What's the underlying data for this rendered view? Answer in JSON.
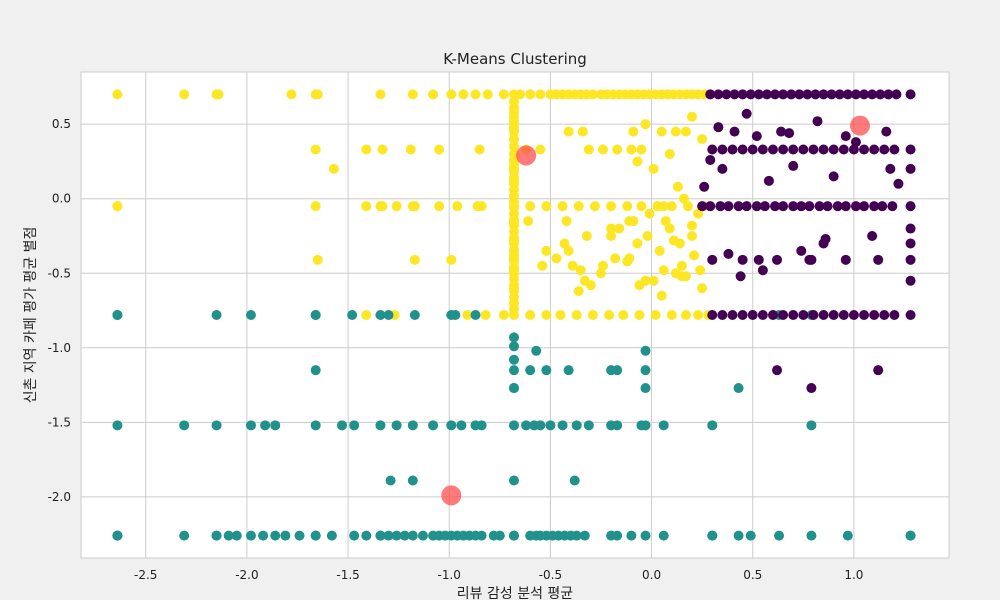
{
  "chart_data": {
    "type": "scatter",
    "title": "K-Means Clustering",
    "xlabel": "리뷰 감성 분석 평균",
    "ylabel": "신촌 지역 카페 평가 평균 별점",
    "xlim": [
      -2.82,
      1.47
    ],
    "ylim": [
      -2.41,
      0.85
    ],
    "xticks": [
      -2.5,
      -2.0,
      -1.5,
      -1.0,
      -0.5,
      0.0,
      0.5,
      1.0
    ],
    "xtick_labels": [
      "-2.5",
      "-2.0",
      "-1.5",
      "-1.0",
      "-0.5",
      "0.0",
      "0.5",
      "1.0"
    ],
    "yticks": [
      -2.0,
      -1.5,
      -1.0,
      -0.5,
      0.0,
      0.5
    ],
    "ytick_labels": [
      "-2.0",
      "-1.5",
      "-1.0",
      "-0.5",
      "0.0",
      "0.5"
    ],
    "grid": true,
    "colors": {
      "cluster_0": "#440154",
      "cluster_1": "#21918c",
      "cluster_2": "#fde725",
      "centroid": "#ff4d4d"
    },
    "series": [
      {
        "cluster": 2,
        "color": "#fde725",
        "x": [
          -2.64,
          -2.31,
          -2.15,
          -2.14,
          -1.78,
          -1.66,
          -1.65,
          -1.34,
          -1.18,
          -1.08,
          -0.99,
          -0.93,
          -0.87,
          -0.81,
          -0.73,
          -0.68,
          -0.65,
          -0.6,
          -0.55,
          -0.5,
          -0.47,
          -0.44,
          -0.41,
          -0.38,
          -0.35,
          -0.32,
          -0.29,
          -0.25,
          -0.22,
          -0.19,
          -0.16,
          -0.13,
          -0.1,
          -0.07,
          -0.04,
          -0.01,
          0.02,
          0.05,
          0.08,
          0.11,
          0.14,
          0.17,
          0.2,
          0.23,
          0.26,
          0.29,
          -2.64,
          -1.66,
          -1.41,
          -1.33,
          -1.19,
          -1.05,
          -0.85,
          -0.68,
          -0.68,
          -0.68,
          -0.68,
          -0.68,
          -0.68,
          -0.68,
          -0.68,
          -0.62,
          -0.55,
          -0.41,
          -0.34,
          -0.31,
          -0.24,
          -0.17,
          -0.1,
          -0.05,
          -0.03,
          0.05,
          0.12,
          0.17,
          0.2,
          0.25,
          -0.07,
          0.09,
          0.01,
          -0.09,
          -2.64,
          -1.66,
          -1.41,
          -1.34,
          -1.26,
          -1.17,
          -1.05,
          -0.96,
          -0.84,
          -0.68,
          -0.6,
          -0.52,
          -0.44,
          -0.36,
          -0.28,
          -0.2,
          -0.12,
          -0.05,
          0.03,
          0.1,
          0.18,
          0.25,
          0.29,
          -1.57,
          -1.33,
          -1.18,
          -0.86,
          -0.68,
          -0.61,
          -0.42,
          -0.52,
          -0.68,
          -0.68,
          -0.68,
          -0.68,
          -0.43,
          -0.32,
          -0.2,
          -0.11,
          -0.07,
          -0.02,
          0.04,
          0.09,
          0.14,
          0.2,
          -1.65,
          -1.17,
          -0.99,
          -0.68,
          -0.54,
          -0.47,
          -0.39,
          -0.33,
          -0.24,
          -0.18,
          -0.11,
          -0.03,
          0.06,
          0.12,
          0.15,
          -2.64,
          -1.66,
          -1.41,
          -1.27,
          -0.97,
          -0.91,
          -0.82,
          -0.73,
          -0.68,
          -0.6,
          -0.52,
          -0.45,
          -0.37,
          -0.29,
          -0.21,
          -0.14,
          -0.06,
          0.02,
          0.1,
          0.17,
          0.23,
          0.28,
          -0.68,
          -0.68,
          -0.68,
          -0.68,
          -0.68,
          -0.68,
          -0.68,
          -0.68,
          -0.68,
          -0.68,
          -0.68,
          -0.68,
          -0.68,
          -0.68,
          -0.68,
          -0.68,
          -0.68,
          -0.68,
          -0.68,
          -0.68,
          -0.68,
          -0.68,
          -0.68,
          -0.68,
          -0.68,
          -0.68,
          -0.68,
          -0.68,
          -0.68,
          -0.68,
          -0.68,
          -0.68,
          -0.68,
          -0.68,
          -0.68,
          -0.68,
          -0.68,
          -0.68,
          -0.41,
          -0.35,
          -0.06,
          0.05,
          0.17,
          0.25,
          -0.2,
          -0.09,
          0.11,
          0.06,
          0.2,
          0.23,
          0.26,
          -0.12,
          0.15,
          0.01,
          -0.01,
          0.03,
          0.07,
          -0.3,
          -0.36,
          0.13,
          0.16,
          -0.25,
          0.21,
          0.24,
          -0.16
        ],
        "y": [
          0.7,
          0.7,
          0.7,
          0.7,
          0.7,
          0.7,
          0.7,
          0.7,
          0.7,
          0.7,
          0.7,
          0.7,
          0.7,
          0.7,
          0.7,
          0.7,
          0.7,
          0.7,
          0.7,
          0.7,
          0.7,
          0.7,
          0.7,
          0.7,
          0.7,
          0.7,
          0.7,
          0.7,
          0.7,
          0.7,
          0.7,
          0.7,
          0.7,
          0.7,
          0.7,
          0.7,
          0.7,
          0.7,
          0.7,
          0.7,
          0.7,
          0.7,
          0.7,
          0.7,
          0.7,
          0.7,
          -0.05,
          0.33,
          0.33,
          0.33,
          0.33,
          0.33,
          0.33,
          0.4,
          0.45,
          0.5,
          0.55,
          0.61,
          0.3,
          0.25,
          0.2,
          0.33,
          0.33,
          0.45,
          0.45,
          0.33,
          0.33,
          0.33,
          0.33,
          0.33,
          0.5,
          0.45,
          0.45,
          0.45,
          0.55,
          0.4,
          0.25,
          0.3,
          0.2,
          0.45,
          -0.05,
          -0.05,
          -0.05,
          -0.05,
          -0.05,
          -0.05,
          -0.05,
          -0.05,
          -0.05,
          -0.05,
          -0.05,
          -0.05,
          -0.05,
          -0.05,
          -0.05,
          -0.05,
          -0.05,
          -0.05,
          -0.05,
          -0.05,
          -0.05,
          -0.05,
          -0.05,
          0.2,
          -0.05,
          -0.05,
          -0.05,
          -0.15,
          -0.15,
          -0.15,
          -0.35,
          -0.4,
          -0.5,
          -0.6,
          -0.7,
          -0.3,
          -0.25,
          -0.2,
          -0.15,
          -0.3,
          -0.25,
          -0.35,
          -0.2,
          -0.3,
          -0.25,
          -0.41,
          -0.41,
          -0.41,
          -0.35,
          -0.45,
          -0.4,
          -0.45,
          -0.55,
          -0.45,
          -0.4,
          -0.4,
          -0.55,
          -0.48,
          -0.5,
          -0.45,
          -0.78,
          -0.78,
          -0.78,
          -0.78,
          -0.78,
          -0.78,
          -0.78,
          -0.78,
          -0.78,
          -0.78,
          -0.78,
          -0.78,
          -0.78,
          -0.78,
          -0.78,
          -0.78,
          -0.78,
          -0.78,
          -0.78,
          -0.78,
          -0.78,
          -0.78,
          0.65,
          0.58,
          0.52,
          0.46,
          0.4,
          0.35,
          0.3,
          0.26,
          0.22,
          0.18,
          0.14,
          0.1,
          0.06,
          0.02,
          -0.02,
          -0.06,
          -0.1,
          -0.14,
          -0.18,
          -0.22,
          -0.26,
          -0.3,
          -0.34,
          -0.38,
          -0.42,
          -0.46,
          -0.5,
          -0.54,
          -0.58,
          -0.62,
          -0.66,
          -0.7,
          -0.74,
          0.12,
          -0.28,
          -0.48,
          -0.16,
          0.48,
          -0.35,
          -0.48,
          -0.58,
          -0.65,
          -0.52,
          -0.6,
          -0.25,
          -0.15,
          -0.28,
          -0.05,
          -0.18,
          -0.1,
          -0.05,
          -0.42,
          -0.52,
          -0.55,
          -0.1,
          -0.05,
          -0.15,
          -0.58,
          -0.62,
          0.08,
          0.0,
          -0.5,
          -0.38,
          -0.48,
          -0.2
        ]
      },
      {
        "cluster": 1,
        "color": "#21918c",
        "x": [
          -2.64,
          -2.64,
          -2.15,
          -1.98,
          -1.66,
          -1.66,
          -1.66,
          -1.48,
          -1.34,
          -1.3,
          -1.17,
          -0.99,
          -0.97,
          -0.87,
          -0.68,
          -0.68,
          -0.68,
          -0.68,
          -0.68,
          -0.68,
          -0.6,
          -0.57,
          -0.52,
          -0.41,
          -0.2,
          -0.17,
          -0.03,
          -0.03,
          -0.03,
          0.43,
          0.63,
          0.79,
          -2.64,
          -2.31,
          -2.15,
          -1.98,
          -1.91,
          -1.86,
          -1.66,
          -1.53,
          -1.47,
          -1.34,
          -1.26,
          -1.18,
          -1.08,
          -0.99,
          -0.94,
          -0.87,
          -0.84,
          -0.68,
          -0.62,
          -0.58,
          -0.55,
          -0.5,
          -0.44,
          -0.37,
          -0.31,
          -0.2,
          -0.17,
          -0.05,
          -0.03,
          0.06,
          0.3,
          0.79,
          -1.29,
          -1.18,
          -0.68,
          -0.38,
          -2.64,
          -2.64,
          -2.31,
          -2.15,
          -2.09,
          -2.05,
          -1.98,
          -1.92,
          -1.86,
          -1.81,
          -1.74,
          -1.66,
          -1.58,
          -1.47,
          -1.41,
          -1.34,
          -1.3,
          -1.26,
          -1.22,
          -1.18,
          -1.13,
          -1.08,
          -1.05,
          -1.02,
          -0.99,
          -0.96,
          -0.93,
          -0.9,
          -0.87,
          -0.84,
          -0.78,
          -0.75,
          -0.68,
          -0.6,
          -0.57,
          -0.55,
          -0.52,
          -0.49,
          -0.46,
          -0.43,
          -0.4,
          -0.37,
          -0.33,
          -0.2,
          -0.17,
          -0.1,
          -0.03,
          0.06,
          0.3,
          0.43,
          0.49,
          0.63,
          0.79,
          0.97,
          1.28,
          -2.64,
          -2.15,
          -1.66,
          -1.34,
          -0.68,
          0.3,
          1.28
        ],
        "y": [
          -0.78,
          -0.78,
          -0.78,
          -0.78,
          -0.78,
          -0.78,
          -1.15,
          -0.78,
          -0.78,
          -0.78,
          -0.78,
          -0.78,
          -0.78,
          -0.78,
          -0.93,
          -0.99,
          -1.08,
          -1.15,
          -1.27,
          -1.27,
          -1.15,
          -1.02,
          -1.15,
          -1.15,
          -1.15,
          -1.15,
          -1.02,
          -1.15,
          -1.27,
          -1.27,
          -0.78,
          -0.78,
          -1.52,
          -1.52,
          -1.52,
          -1.52,
          -1.52,
          -1.52,
          -1.52,
          -1.52,
          -1.52,
          -1.52,
          -1.52,
          -1.52,
          -1.52,
          -1.52,
          -1.52,
          -1.52,
          -1.52,
          -1.52,
          -1.52,
          -1.52,
          -1.52,
          -1.52,
          -1.52,
          -1.52,
          -1.52,
          -1.52,
          -1.52,
          -1.52,
          -1.52,
          -1.52,
          -1.52,
          -1.52,
          -1.89,
          -1.89,
          -1.89,
          -1.89,
          -2.26,
          -2.26,
          -2.26,
          -2.26,
          -2.26,
          -2.26,
          -2.26,
          -2.26,
          -2.26,
          -2.26,
          -2.26,
          -2.26,
          -2.26,
          -2.26,
          -2.26,
          -2.26,
          -2.26,
          -2.26,
          -2.26,
          -2.26,
          -2.26,
          -2.26,
          -2.26,
          -2.26,
          -2.26,
          -2.26,
          -2.26,
          -2.26,
          -2.26,
          -2.26,
          -2.26,
          -2.26,
          -2.26,
          -2.26,
          -2.26,
          -2.26,
          -2.26,
          -2.26,
          -2.26,
          -2.26,
          -2.26,
          -2.26,
          -2.26,
          -2.26,
          -2.26,
          -2.26,
          -2.26,
          -2.26,
          -2.26,
          -2.26,
          -2.26,
          -2.26,
          -2.26,
          -2.26,
          -2.26,
          -2.26,
          -2.26,
          -2.26,
          -2.26,
          -2.26,
          -2.26,
          -2.26
        ]
      },
      {
        "cluster": 0,
        "color": "#440154",
        "x": [
          0.29,
          0.33,
          0.37,
          0.41,
          0.45,
          0.49,
          0.53,
          0.57,
          0.61,
          0.65,
          0.69,
          0.73,
          0.77,
          0.81,
          0.85,
          0.89,
          0.93,
          0.97,
          1.01,
          1.05,
          1.09,
          1.13,
          1.17,
          1.21,
          1.28,
          0.3,
          0.35,
          0.4,
          0.45,
          0.5,
          0.55,
          0.6,
          0.65,
          0.7,
          0.75,
          0.8,
          0.85,
          0.9,
          0.95,
          1.0,
          1.05,
          1.1,
          1.15,
          1.2,
          1.28,
          0.25,
          0.29,
          0.34,
          0.38,
          0.43,
          0.47,
          0.52,
          0.56,
          0.61,
          0.65,
          0.7,
          0.74,
          0.78,
          0.83,
          0.87,
          0.92,
          0.96,
          1.01,
          1.05,
          1.1,
          1.14,
          1.19,
          1.28,
          0.3,
          0.35,
          0.4,
          0.45,
          0.5,
          0.55,
          0.6,
          0.65,
          0.7,
          0.75,
          0.8,
          0.85,
          0.9,
          0.95,
          1.0,
          1.05,
          1.1,
          1.15,
          1.2,
          1.28,
          0.3,
          0.45,
          0.53,
          0.62,
          0.79,
          0.96,
          1.12,
          1.28,
          1.28,
          0.47,
          0.64,
          0.82,
          1.01,
          1.16,
          0.26,
          0.35,
          0.58,
          0.7,
          0.9,
          0.52,
          0.38,
          0.74,
          0.85,
          1.09,
          0.33,
          0.41,
          0.68,
          0.96,
          1.18,
          0.29,
          0.55,
          0.86,
          1.22,
          0.44,
          0.62,
          0.79,
          1.12,
          0.78,
          1.28,
          1.28,
          1.28
        ],
        "y": [
          0.7,
          0.7,
          0.7,
          0.7,
          0.7,
          0.7,
          0.7,
          0.7,
          0.7,
          0.7,
          0.7,
          0.7,
          0.7,
          0.7,
          0.7,
          0.7,
          0.7,
          0.7,
          0.7,
          0.7,
          0.7,
          0.7,
          0.7,
          0.7,
          0.7,
          0.33,
          0.33,
          0.33,
          0.33,
          0.33,
          0.33,
          0.33,
          0.33,
          0.33,
          0.33,
          0.33,
          0.33,
          0.33,
          0.33,
          0.33,
          0.33,
          0.33,
          0.33,
          0.33,
          0.33,
          -0.05,
          -0.05,
          -0.05,
          -0.05,
          -0.05,
          -0.05,
          -0.05,
          -0.05,
          -0.05,
          -0.05,
          -0.05,
          -0.05,
          -0.05,
          -0.05,
          -0.05,
          -0.05,
          -0.05,
          -0.05,
          -0.05,
          -0.05,
          -0.05,
          -0.05,
          -0.05,
          -0.78,
          -0.78,
          -0.78,
          -0.78,
          -0.78,
          -0.78,
          -0.78,
          -0.78,
          -0.78,
          -0.78,
          -0.78,
          -0.78,
          -0.78,
          -0.78,
          -0.78,
          -0.78,
          -0.78,
          -0.78,
          -0.78,
          -0.78,
          -0.41,
          -0.41,
          -0.41,
          -0.41,
          -0.41,
          -0.41,
          -0.41,
          -0.41,
          -0.55,
          0.57,
          0.45,
          0.52,
          0.38,
          0.45,
          0.08,
          0.2,
          0.12,
          0.22,
          0.15,
          0.42,
          -0.37,
          -0.35,
          -0.3,
          -0.25,
          0.48,
          0.45,
          0.44,
          0.42,
          0.2,
          0.26,
          -0.48,
          -0.27,
          0.1,
          -0.52,
          -1.15,
          -1.27,
          -1.15,
          -0.41,
          0.2,
          -0.2,
          -0.3
        ]
      }
    ],
    "centroids": {
      "x": [
        -0.62,
        -0.99,
        1.03
      ],
      "y": [
        0.29,
        -1.99,
        0.49
      ]
    }
  }
}
